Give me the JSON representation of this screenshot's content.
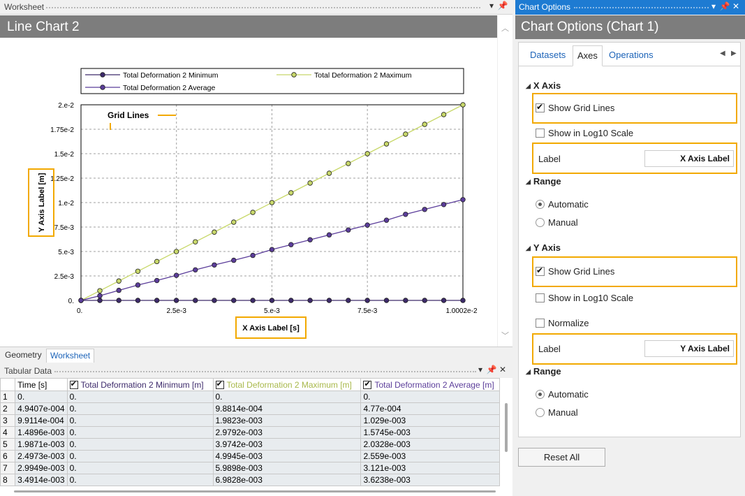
{
  "worksheet": {
    "pane_title": "Worksheet",
    "header": "Line Chart 2",
    "pin_icon": "pin-icon",
    "dropdown_icon": "dropdown-icon"
  },
  "doc_tabs": [
    "Geometry",
    "Worksheet"
  ],
  "chart": {
    "annotation_grid": "Grid Lines",
    "annotation_y": "Y Axis Label [m]",
    "annotation_x": "X Axis Label [s]",
    "accent_color": "#f2a900"
  },
  "chart_data": {
    "type": "line",
    "xlabel": "X Axis Label [s]",
    "ylabel": "Y Axis Label [m]",
    "xlim": [
      0,
      0.010002
    ],
    "ylim": [
      0,
      0.02
    ],
    "x_ticks": [
      0,
      0.0025,
      0.005,
      0.0075,
      0.010002
    ],
    "x_tick_labels": [
      "0.",
      "2.5e-3",
      "5.e-3",
      "7.5e-3",
      "1.0002e-2"
    ],
    "y_ticks": [
      0,
      0.0025,
      0.005,
      0.0075,
      0.01,
      0.0125,
      0.015,
      0.0175,
      0.02
    ],
    "y_tick_labels": [
      "0.",
      "2.5e-3",
      "5.e-3",
      "7.5e-3",
      "1.e-2",
      "1.25e-2",
      "1.5e-2",
      "1.75e-2",
      "2.e-2"
    ],
    "grid": true,
    "legend_position": "top",
    "x": [
      0,
      0.00049407,
      0.00099114,
      0.0014896,
      0.0019871,
      0.0024973,
      0.0029949,
      0.0034914,
      0.004,
      0.0045,
      0.005,
      0.0055,
      0.006,
      0.0065,
      0.007,
      0.0075,
      0.008,
      0.0085,
      0.009,
      0.0095,
      0.010002
    ],
    "series": [
      {
        "name": "Total Deformation 2 Minimum",
        "color": "#3d2a6b",
        "values": [
          0,
          0,
          0,
          0,
          0,
          0,
          0,
          0,
          0,
          0,
          0,
          0,
          0,
          0,
          0,
          0,
          0,
          0,
          0,
          0,
          0
        ]
      },
      {
        "name": "Total Deformation 2 Maximum",
        "color": "#c8d86a",
        "values": [
          0,
          0.00098814,
          0.0019823,
          0.0029792,
          0.0039742,
          0.0049945,
          0.0059898,
          0.0069828,
          0.008,
          0.009,
          0.01,
          0.011,
          0.012,
          0.013,
          0.014,
          0.015,
          0.016,
          0.017,
          0.018,
          0.019,
          0.02
        ]
      },
      {
        "name": "Total Deformation 2 Average",
        "color": "#5b3d9a",
        "values": [
          0,
          0.000477,
          0.001029,
          0.0015745,
          0.0020328,
          0.002559,
          0.003121,
          0.0036238,
          0.0041,
          0.0046,
          0.0052,
          0.0057,
          0.0062,
          0.0067,
          0.0072,
          0.0077,
          0.0082,
          0.0088,
          0.0093,
          0.0098,
          0.0103
        ]
      }
    ]
  },
  "tabular": {
    "pane_title": "Tabular Data",
    "columns": [
      "Time [s]",
      "Total Deformation 2 Minimum [m]",
      "Total Deformation 2 Maximum [m]",
      "Total Deformation 2 Average [m]"
    ],
    "column_colors": [
      "#000000",
      "#3d2a6b",
      "#a8b84a",
      "#5b3d9a"
    ],
    "rows": [
      [
        "1",
        "0.",
        "0.",
        "0.",
        "0."
      ],
      [
        "2",
        "4.9407e-004",
        "0.",
        "9.8814e-004",
        "4.77e-004"
      ],
      [
        "3",
        "9.9114e-004",
        "0.",
        "1.9823e-003",
        "1.029e-003"
      ],
      [
        "4",
        "1.4896e-003",
        "0.",
        "2.9792e-003",
        "1.5745e-003"
      ],
      [
        "5",
        "1.9871e-003",
        "0.",
        "3.9742e-003",
        "2.0328e-003"
      ],
      [
        "6",
        "2.4973e-003",
        "0.",
        "4.9945e-003",
        "2.559e-003"
      ],
      [
        "7",
        "2.9949e-003",
        "0.",
        "5.9898e-003",
        "3.121e-003"
      ],
      [
        "8",
        "3.4914e-003",
        "0.",
        "6.9828e-003",
        "3.6238e-003"
      ]
    ]
  },
  "options": {
    "pane_title": "Chart Options",
    "header": "Chart Options (Chart 1)",
    "tabs": [
      "Datasets",
      "Axes",
      "Operations"
    ],
    "active_tab": "Axes",
    "x_axis": {
      "title": "X Axis",
      "show_grid_lines": "Show Grid Lines",
      "show_log10": "Show in Log10 Scale",
      "label_caption": "Label",
      "label_value": "X Axis Label"
    },
    "x_range": {
      "title": "Range",
      "automatic": "Automatic",
      "manual": "Manual"
    },
    "y_axis": {
      "title": "Y Axis",
      "show_grid_lines": "Show Grid Lines",
      "show_log10": "Show in Log10 Scale",
      "normalize": "Normalize",
      "label_caption": "Label",
      "label_value": "Y Axis Label"
    },
    "y_range": {
      "title": "Range",
      "automatic": "Automatic",
      "manual": "Manual"
    },
    "reset_label": "Reset All",
    "accent_color": "#1e7bd2"
  }
}
